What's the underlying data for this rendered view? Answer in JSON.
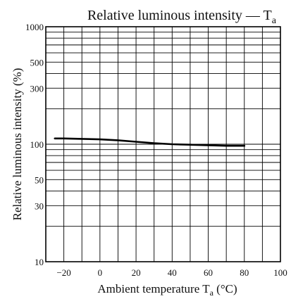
{
  "chart_data": {
    "type": "line",
    "title": "Relative luminous intensity — T",
    "title_subscript": "a",
    "xlabel": "Ambient temperature  T",
    "xlabel_subscript": "a",
    "xlabel_suffix": "  (°C)",
    "ylabel": "Relative luminous intensity  (%)",
    "x_scale": "linear",
    "y_scale": "log",
    "xlim": [
      -30,
      100
    ],
    "ylim": [
      10,
      1000
    ],
    "x_ticks": [
      -20,
      0,
      20,
      40,
      60,
      80,
      100
    ],
    "x_tick_labels": [
      "−20",
      "0",
      "20",
      "40",
      "60",
      "80",
      "100"
    ],
    "y_ticks": [
      10,
      30,
      50,
      100,
      300,
      500,
      1000
    ],
    "y_tick_labels": [
      "10",
      "30",
      "50",
      "100",
      "300",
      "500",
      "1000"
    ],
    "y_gridlines": [
      10,
      20,
      30,
      40,
      50,
      60,
      70,
      80,
      90,
      100,
      200,
      300,
      400,
      500,
      600,
      700,
      800,
      900,
      1000
    ],
    "x_gridlines": [
      -30,
      -20,
      -10,
      0,
      10,
      20,
      30,
      40,
      50,
      60,
      70,
      80,
      90,
      100
    ],
    "grid": true,
    "series": [
      {
        "x": [
          -25,
          -20,
          -10,
          0,
          10,
          20,
          30,
          40,
          50,
          60,
          70,
          80
        ],
        "values": [
          112,
          112,
          111,
          110,
          108,
          105,
          102,
          100,
          99,
          98,
          97,
          97
        ]
      }
    ],
    "line_color": "#000000"
  }
}
